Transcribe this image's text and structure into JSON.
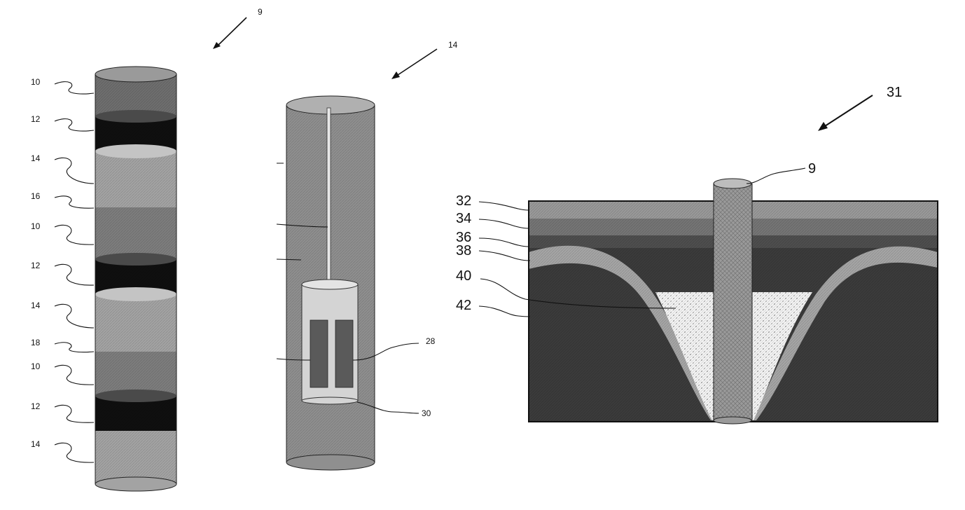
{
  "figure_a": {
    "ref": "9",
    "labels": [
      "10",
      "12",
      "14",
      "16",
      "10",
      "12",
      "14",
      "18",
      "10",
      "12",
      "14"
    ]
  },
  "figure_b": {
    "ref": "14",
    "labels": [
      "28",
      "30"
    ]
  },
  "figure_c": {
    "ref": "31",
    "pile_label": "9",
    "labels": [
      "32",
      "34",
      "36",
      "38",
      "40",
      "42"
    ]
  },
  "colors": {
    "band_mid": "#6e6e6e",
    "band_dark": "#0f0f0f",
    "band_light": "#a3a3a3",
    "band_medium": "#7d7d7d",
    "tube": "#8f8f8f",
    "canister": "#d4d4d4",
    "sensor": "#5a5a5a",
    "ground_deep": "#3b3b3b",
    "layer_light": "#a5a5a5",
    "cone_fill": "#f4f4f4",
    "pile": "#9a9a9a"
  },
  "icons": [
    "arrow-icon"
  ]
}
